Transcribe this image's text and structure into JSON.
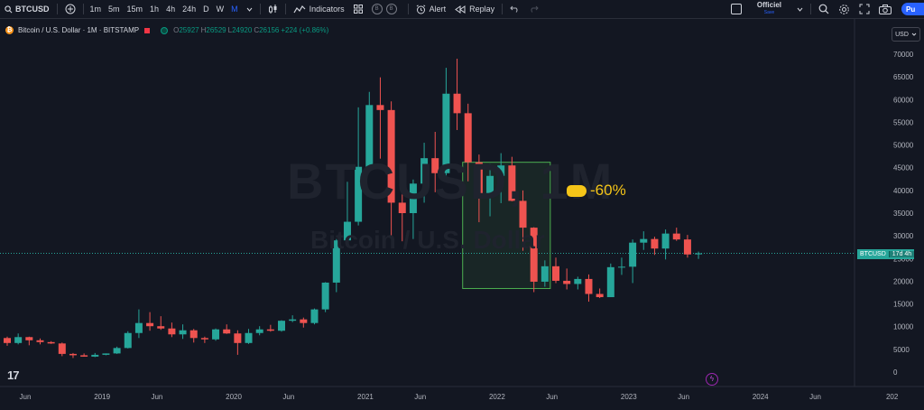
{
  "toolbar": {
    "symbol": "BTCUSD",
    "intervals": [
      "1m",
      "5m",
      "15m",
      "1h",
      "4h",
      "24h",
      "D",
      "W",
      "M"
    ],
    "active_interval": "M",
    "indicators_label": "Indicators",
    "badge_b1": "B",
    "badge_b2": "B",
    "alert_label": "Alert",
    "replay_label": "Replay",
    "layout_name": "Officiel",
    "layout_status": "Save",
    "publish_label": "Pu"
  },
  "legend": {
    "title": "Bitcoin / U.S. Dollar · 1M · BITSTAMP",
    "o_label": "O",
    "o_value": "25927",
    "h_label": "H",
    "h_value": "26529",
    "l_label": "L",
    "l_value": "24920",
    "c_label": "C",
    "c_value": "26156",
    "change": "+224 (+0.86%)"
  },
  "currency": "USD",
  "watermark": {
    "symbol": "BTCUSD, 1M",
    "name": "Bitcoin / U.S. Dollar"
  },
  "price_tag": {
    "symbol": "BTCUSD",
    "countdown": "17d 4h"
  },
  "annotation": "-60%",
  "colors": {
    "bg": "#131722",
    "up": "#26a69a",
    "down": "#ef5350",
    "accent": "#2962ff",
    "annotation": "#f5c518",
    "box": "#4caf50"
  },
  "chart_data": {
    "type": "candlestick",
    "interval": "1M",
    "ylim": [
      0,
      70000
    ],
    "y_ticks": [
      "70000",
      "65000",
      "60000",
      "55000",
      "50000",
      "45000",
      "40000",
      "35000",
      "30000",
      "25000",
      "20000",
      "15000",
      "10000",
      "5000",
      "0"
    ],
    "x_ticks": [
      "Jun",
      "2019",
      "Jun",
      "2020",
      "Jun",
      "2021",
      "Jun",
      "2022",
      "Jun",
      "2023",
      "Jun",
      "2024",
      "Jun",
      "202"
    ],
    "candles": [
      {
        "t": "2018-06",
        "o": 7500,
        "h": 7800,
        "l": 5800,
        "c": 6400
      },
      {
        "t": "2018-07",
        "o": 6400,
        "h": 8500,
        "l": 6100,
        "c": 7700
      },
      {
        "t": "2018-08",
        "o": 7700,
        "h": 7800,
        "l": 5900,
        "c": 7000
      },
      {
        "t": "2018-09",
        "o": 7000,
        "h": 7400,
        "l": 6100,
        "c": 6600
      },
      {
        "t": "2018-10",
        "o": 6600,
        "h": 6800,
        "l": 6200,
        "c": 6300
      },
      {
        "t": "2018-11",
        "o": 6300,
        "h": 6500,
        "l": 3500,
        "c": 4000
      },
      {
        "t": "2018-12",
        "o": 4000,
        "h": 4200,
        "l": 3100,
        "c": 3700
      },
      {
        "t": "2019-01",
        "o": 3700,
        "h": 4100,
        "l": 3400,
        "c": 3400
      },
      {
        "t": "2019-02",
        "o": 3400,
        "h": 4200,
        "l": 3300,
        "c": 3800
      },
      {
        "t": "2019-03",
        "o": 3800,
        "h": 4100,
        "l": 3700,
        "c": 4100
      },
      {
        "t": "2019-04",
        "o": 4100,
        "h": 5600,
        "l": 4000,
        "c": 5300
      },
      {
        "t": "2019-05",
        "o": 5300,
        "h": 9000,
        "l": 5200,
        "c": 8600
      },
      {
        "t": "2019-06",
        "o": 8600,
        "h": 13800,
        "l": 7500,
        "c": 10800
      },
      {
        "t": "2019-07",
        "o": 10800,
        "h": 13200,
        "l": 9100,
        "c": 10100
      },
      {
        "t": "2019-08",
        "o": 10100,
        "h": 12300,
        "l": 9300,
        "c": 9600
      },
      {
        "t": "2019-09",
        "o": 9600,
        "h": 10900,
        "l": 7700,
        "c": 8300
      },
      {
        "t": "2019-10",
        "o": 8300,
        "h": 10500,
        "l": 7300,
        "c": 9200
      },
      {
        "t": "2019-11",
        "o": 9200,
        "h": 9500,
        "l": 6500,
        "c": 7500
      },
      {
        "t": "2019-12",
        "o": 7500,
        "h": 7800,
        "l": 6400,
        "c": 7200
      },
      {
        "t": "2020-01",
        "o": 7200,
        "h": 9600,
        "l": 6900,
        "c": 9400
      },
      {
        "t": "2020-02",
        "o": 9400,
        "h": 10500,
        "l": 8400,
        "c": 8500
      },
      {
        "t": "2020-03",
        "o": 8500,
        "h": 9200,
        "l": 3800,
        "c": 6400
      },
      {
        "t": "2020-04",
        "o": 6400,
        "h": 9500,
        "l": 6200,
        "c": 8600
      },
      {
        "t": "2020-05",
        "o": 8600,
        "h": 10100,
        "l": 8100,
        "c": 9400
      },
      {
        "t": "2020-06",
        "o": 9400,
        "h": 10400,
        "l": 8900,
        "c": 9100
      },
      {
        "t": "2020-07",
        "o": 9100,
        "h": 11400,
        "l": 8900,
        "c": 11300
      },
      {
        "t": "2020-08",
        "o": 11300,
        "h": 12500,
        "l": 11000,
        "c": 11600
      },
      {
        "t": "2020-09",
        "o": 11600,
        "h": 12000,
        "l": 9800,
        "c": 10800
      },
      {
        "t": "2020-10",
        "o": 10800,
        "h": 14000,
        "l": 10500,
        "c": 13800
      },
      {
        "t": "2020-11",
        "o": 13800,
        "h": 19800,
        "l": 13200,
        "c": 19700
      },
      {
        "t": "2020-12",
        "o": 19700,
        "h": 29300,
        "l": 17600,
        "c": 29000
      },
      {
        "t": "2021-01",
        "o": 29000,
        "h": 41900,
        "l": 28100,
        "c": 33100
      },
      {
        "t": "2021-02",
        "o": 33100,
        "h": 58300,
        "l": 32300,
        "c": 45200
      },
      {
        "t": "2021-03",
        "o": 45200,
        "h": 61700,
        "l": 45000,
        "c": 58800
      },
      {
        "t": "2021-04",
        "o": 58800,
        "h": 64900,
        "l": 47000,
        "c": 57700
      },
      {
        "t": "2021-05",
        "o": 57700,
        "h": 59600,
        "l": 30000,
        "c": 37300
      },
      {
        "t": "2021-06",
        "o": 37300,
        "h": 41300,
        "l": 28800,
        "c": 35000
      },
      {
        "t": "2021-07",
        "o": 35000,
        "h": 42400,
        "l": 29300,
        "c": 41500
      },
      {
        "t": "2021-08",
        "o": 41500,
        "h": 50500,
        "l": 37300,
        "c": 47100
      },
      {
        "t": "2021-09",
        "o": 47100,
        "h": 52900,
        "l": 39600,
        "c": 43800
      },
      {
        "t": "2021-10",
        "o": 43800,
        "h": 67000,
        "l": 43300,
        "c": 61300
      },
      {
        "t": "2021-11",
        "o": 61300,
        "h": 69000,
        "l": 53300,
        "c": 57000
      },
      {
        "t": "2021-12",
        "o": 57000,
        "h": 59100,
        "l": 42000,
        "c": 46200
      },
      {
        "t": "2022-01",
        "o": 46200,
        "h": 47900,
        "l": 33000,
        "c": 38500
      },
      {
        "t": "2022-02",
        "o": 38500,
        "h": 45800,
        "l": 34300,
        "c": 43200
      },
      {
        "t": "2022-03",
        "o": 43200,
        "h": 48200,
        "l": 37200,
        "c": 45500
      },
      {
        "t": "2022-04",
        "o": 45500,
        "h": 47400,
        "l": 37600,
        "c": 37700
      },
      {
        "t": "2022-05",
        "o": 37700,
        "h": 40000,
        "l": 26700,
        "c": 31800
      },
      {
        "t": "2022-06",
        "o": 31800,
        "h": 31900,
        "l": 17600,
        "c": 19900
      },
      {
        "t": "2022-07",
        "o": 19900,
        "h": 24600,
        "l": 18800,
        "c": 23300
      },
      {
        "t": "2022-08",
        "o": 23300,
        "h": 25200,
        "l": 19600,
        "c": 20100
      },
      {
        "t": "2022-09",
        "o": 20100,
        "h": 22800,
        "l": 18200,
        "c": 19400
      },
      {
        "t": "2022-10",
        "o": 19400,
        "h": 21000,
        "l": 18200,
        "c": 20500
      },
      {
        "t": "2022-11",
        "o": 20500,
        "h": 21500,
        "l": 15500,
        "c": 17200
      },
      {
        "t": "2022-12",
        "o": 17200,
        "h": 18400,
        "l": 16300,
        "c": 16500
      },
      {
        "t": "2023-01",
        "o": 16500,
        "h": 23900,
        "l": 16500,
        "c": 23100
      },
      {
        "t": "2023-02",
        "o": 23100,
        "h": 25200,
        "l": 21400,
        "c": 23200
      },
      {
        "t": "2023-03",
        "o": 23200,
        "h": 29200,
        "l": 19600,
        "c": 28500
      },
      {
        "t": "2023-04",
        "o": 28500,
        "h": 31000,
        "l": 26900,
        "c": 29300
      },
      {
        "t": "2023-05",
        "o": 29300,
        "h": 29800,
        "l": 25800,
        "c": 27200
      },
      {
        "t": "2023-06",
        "o": 27200,
        "h": 31400,
        "l": 24800,
        "c": 30500
      },
      {
        "t": "2023-07",
        "o": 30500,
        "h": 31800,
        "l": 28900,
        "c": 29200
      },
      {
        "t": "2023-08",
        "o": 29200,
        "h": 30200,
        "l": 25200,
        "c": 25900
      },
      {
        "t": "2023-09",
        "o": 25927,
        "h": 26529,
        "l": 24920,
        "c": 26156
      }
    ],
    "current_price": 26156,
    "box": {
      "t_start": "2021-12",
      "t_end": "2022-07",
      "price_top": 46200,
      "price_bottom": 18400
    }
  }
}
